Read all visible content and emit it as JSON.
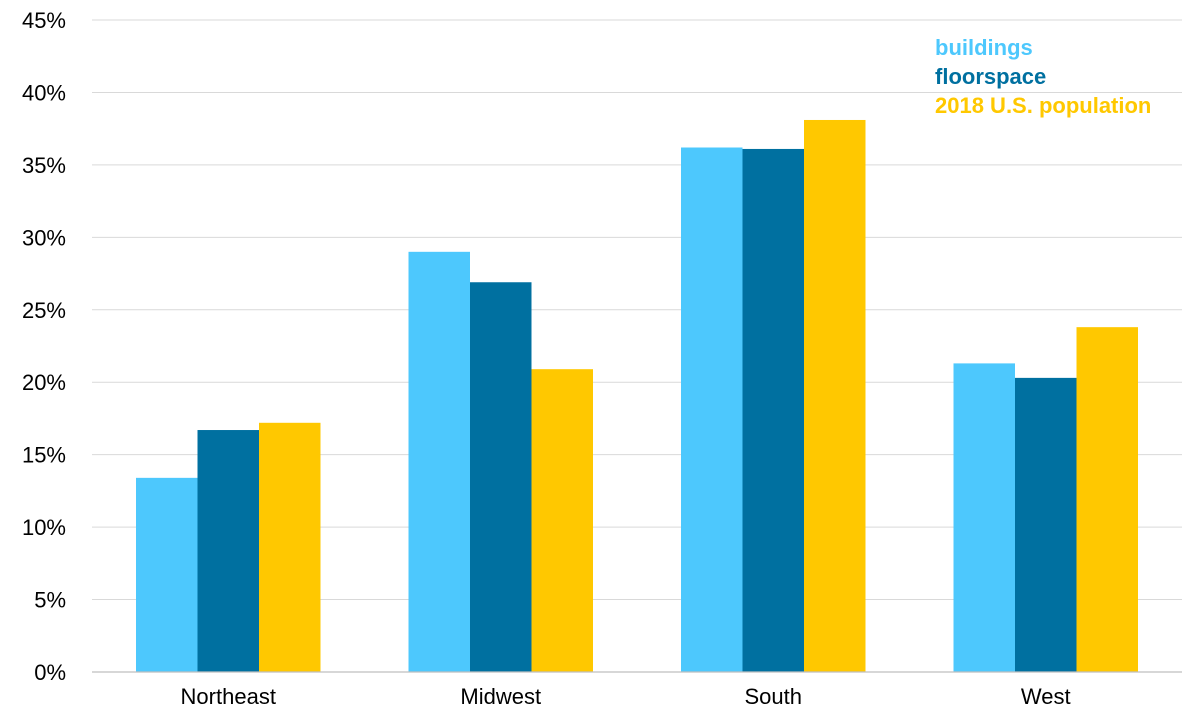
{
  "chart_data": {
    "type": "bar",
    "title": "",
    "xlabel": "",
    "ylabel": "",
    "categories": [
      "Northeast",
      "Midwest",
      "South",
      "West"
    ],
    "series": [
      {
        "name": "buildings",
        "color": "#4dc8fd",
        "values": [
          13.4,
          29.0,
          36.2,
          21.3
        ]
      },
      {
        "name": "floorspace",
        "color": "#0070a0",
        "values": [
          16.7,
          26.9,
          36.1,
          20.3
        ]
      },
      {
        "name": "2018 U.S. population",
        "color": "#ffc800",
        "values": [
          17.2,
          20.9,
          38.1,
          23.8
        ]
      }
    ],
    "ylim": [
      0,
      45
    ],
    "yticks": [
      0,
      5,
      10,
      15,
      20,
      25,
      30,
      35,
      40,
      45
    ],
    "ytick_labels": [
      "0%",
      "5%",
      "10%",
      "15%",
      "20%",
      "25%",
      "30%",
      "35%",
      "40%",
      "45%"
    ],
    "grid": true,
    "legend_position": "top-right"
  }
}
